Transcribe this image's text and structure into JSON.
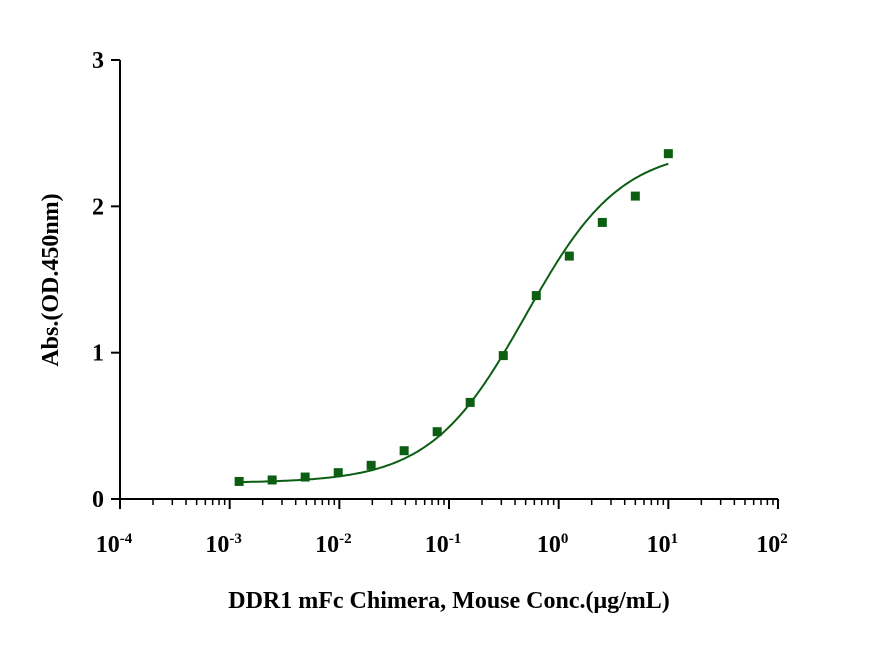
{
  "chart_data": {
    "type": "scatter",
    "title": "",
    "xlabel": "DDR1 mFc Chimera, Mouse Conc.(μg/mL)",
    "ylabel": "Abs.(OD.450nm)",
    "xscale": "log",
    "xlim": [
      0.0001,
      100
    ],
    "ylim": [
      0,
      3
    ],
    "x_ticks": [
      {
        "exp": "-4",
        "base": "10"
      },
      {
        "exp": "-3",
        "base": "10"
      },
      {
        "exp": "-2",
        "base": "10"
      },
      {
        "exp": "-1",
        "base": "10"
      },
      {
        "exp": "0",
        "base": "10"
      },
      {
        "exp": "1",
        "base": "10"
      },
      {
        "exp": "2",
        "base": "10"
      }
    ],
    "y_ticks": [
      "0",
      "1",
      "2",
      "3"
    ],
    "grid": false,
    "series": [
      {
        "name": "DDR1 mFc Chimera, Mouse",
        "color": "#0b5e12",
        "marker": "square",
        "x": [
          0.00122,
          0.00244,
          0.00488,
          0.00977,
          0.0195,
          0.039,
          0.078,
          0.156,
          0.3125,
          0.625,
          1.25,
          2.5,
          5,
          10
        ],
        "y": [
          0.12,
          0.13,
          0.15,
          0.18,
          0.23,
          0.33,
          0.46,
          0.66,
          0.98,
          1.39,
          1.66,
          1.89,
          2.07,
          2.36
        ]
      }
    ],
    "fit": {
      "model": "4PL",
      "bottom": 0.11,
      "top": 2.4,
      "ec50": 0.5,
      "hill": 1.0
    }
  }
}
